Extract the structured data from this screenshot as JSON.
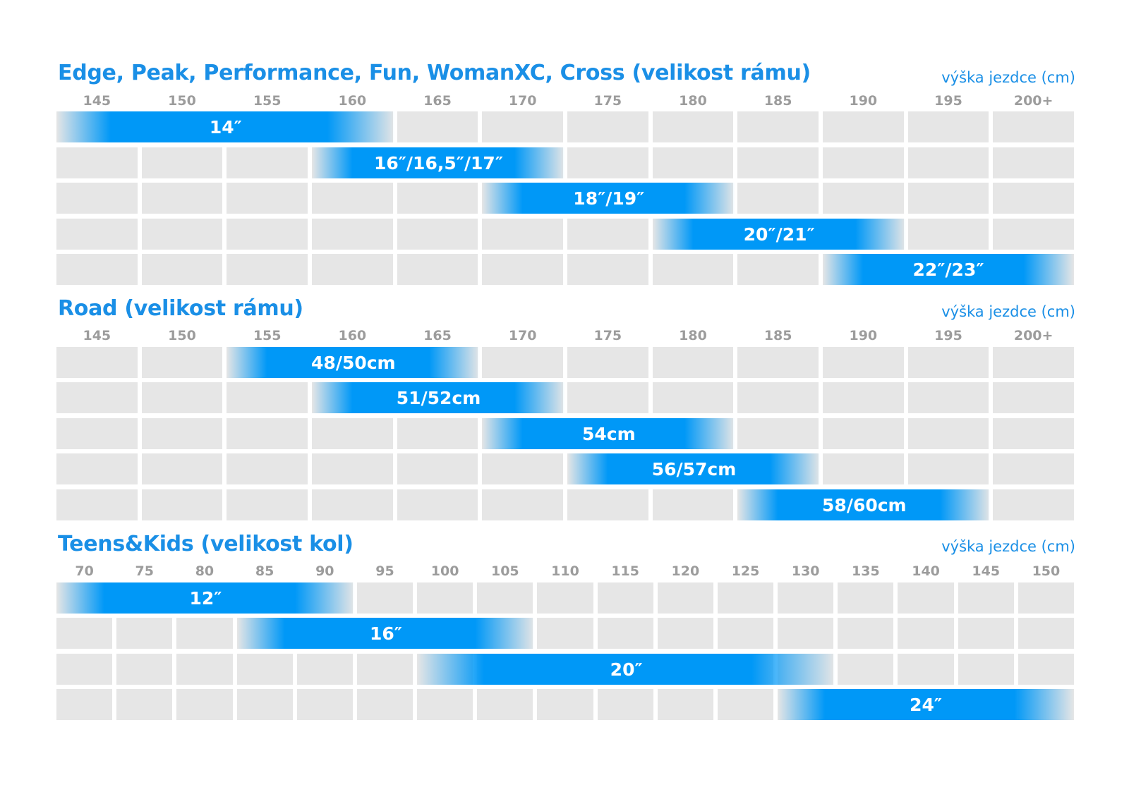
{
  "colors": {
    "accent": "#1a8fe6",
    "bar": "#0098f7",
    "cell": "#e6e6e6",
    "tick": "#9c9c9c"
  },
  "chart_data": [
    {
      "type": "table",
      "title": "Edge, Peak, Performance, Fun, WomanXC, Cross  (velikost rámu)",
      "xlabel": "výška jezdce (cm)",
      "columns": [
        "145",
        "150",
        "155",
        "160",
        "165",
        "170",
        "175",
        "180",
        "185",
        "190",
        "195",
        "200+"
      ],
      "bars": [
        {
          "label": "14″",
          "row": 0,
          "from": 142.5,
          "to": 162.5
        },
        {
          "label": "16″/16,5″/17″",
          "row": 1,
          "from": 157.5,
          "to": 172.5
        },
        {
          "label": "18″/19″",
          "row": 2,
          "from": 167.5,
          "to": 182.5
        },
        {
          "label": "20″/21″",
          "row": 3,
          "from": 177.5,
          "to": 192.5
        },
        {
          "label": "22″/23″",
          "row": 4,
          "from": 187.5,
          "to": 202.5
        }
      ]
    },
    {
      "type": "table",
      "title": "Road  (velikost rámu)",
      "xlabel": "výška jezdce (cm)",
      "columns": [
        "145",
        "150",
        "155",
        "160",
        "165",
        "170",
        "175",
        "180",
        "185",
        "190",
        "195",
        "200+"
      ],
      "bars": [
        {
          "label": "48/50cm",
          "row": 0,
          "from": 152.5,
          "to": 167.5
        },
        {
          "label": "51/52cm",
          "row": 1,
          "from": 157.5,
          "to": 172.5
        },
        {
          "label": "54cm",
          "row": 2,
          "from": 167.5,
          "to": 182.5
        },
        {
          "label": "56/57cm",
          "row": 3,
          "from": 172.5,
          "to": 187.5
        },
        {
          "label": "58/60cm",
          "row": 4,
          "from": 182.5,
          "to": 197.5
        }
      ]
    },
    {
      "type": "table",
      "title": "Teens&Kids  (velikost kol)",
      "xlabel": "výška jezdce (cm)",
      "columns": [
        "70",
        "75",
        "80",
        "85",
        "90",
        "95",
        "100",
        "105",
        "110",
        "115",
        "120",
        "125",
        "130",
        "135",
        "140",
        "145",
        "150"
      ],
      "bars": [
        {
          "label": "12″",
          "row": 0,
          "from": 67.5,
          "to": 92.5
        },
        {
          "label": "16″",
          "row": 1,
          "from": 82.5,
          "to": 107.5
        },
        {
          "label": "20″",
          "row": 2,
          "from": 97.5,
          "to": 132.5
        },
        {
          "label": "24″",
          "row": 3,
          "from": 127.5,
          "to": 152.5
        }
      ]
    }
  ]
}
